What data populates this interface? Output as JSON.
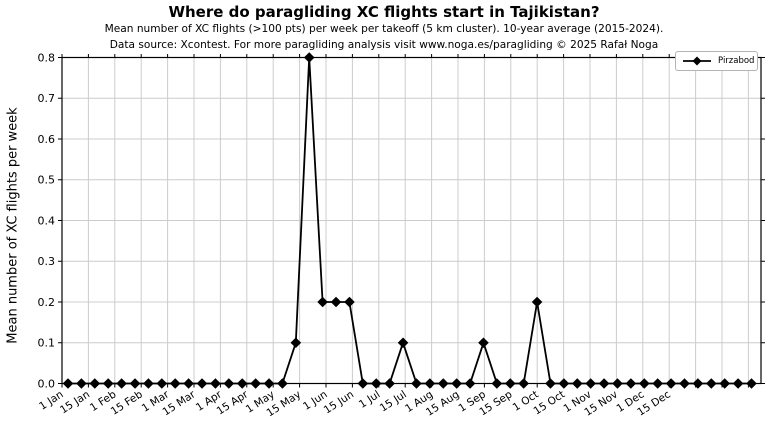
{
  "figure": {
    "title": "Where do paragliding XC flights start in Tajikistan?",
    "subtitle_line1": "Mean number of XC flights (>100 pts) per week per takeoff (5 km cluster). 10-year average (2015-2024).",
    "subtitle_line2": "Data source: Xcontest. For more paragliding analysis visit www.noga.es/paragliding © 2025 Rafał Noga"
  },
  "legend": {
    "series_label": "Pirzabod"
  },
  "chart_data": {
    "type": "line",
    "title": "Where do paragliding XC flights start in Tajikistan?",
    "subtitle1": "Mean number of XC flights (>100 pts) per week per takeoff (5 km cluster). 10-year average (2015-2024).",
    "subtitle2": "Data source: Xcontest. For more paragliding analysis visit www.noga.es/paragliding © 2025 Rafał Noga",
    "xlabel": "",
    "ylabel": "Mean number of XC flights per week",
    "x_unit": "week of year",
    "x_week_numbers": [
      1,
      2,
      3,
      4,
      5,
      6,
      7,
      8,
      9,
      10,
      11,
      12,
      13,
      14,
      15,
      16,
      17,
      18,
      19,
      20,
      21,
      22,
      23,
      24,
      25,
      26,
      27,
      28,
      29,
      30,
      31,
      32,
      33,
      34,
      35,
      36,
      37,
      38,
      39,
      40,
      41,
      42,
      43,
      44,
      45,
      46,
      47,
      48,
      49,
      50,
      51,
      52
    ],
    "series": [
      {
        "name": "Pirzabod",
        "marker": "diamond",
        "color": "#000000",
        "values": [
          0,
          0,
          0,
          0,
          0,
          0,
          0,
          0,
          0,
          0,
          0,
          0,
          0,
          0,
          0,
          0,
          0,
          0.1,
          0.8,
          0.2,
          0.2,
          0.2,
          0,
          0,
          0,
          0.1,
          0,
          0,
          0,
          0,
          0,
          0.1,
          0,
          0,
          0,
          0.2,
          0,
          0,
          0,
          0,
          0,
          0,
          0,
          0,
          0,
          0,
          0,
          0,
          0,
          0,
          0,
          0
        ]
      }
    ],
    "x_tick_labels": [
      "1 Jan",
      "15 Jan",
      "1 Feb",
      "15 Feb",
      "1 Mar",
      "15 Mar",
      "1 Apr",
      "15 Apr",
      "1 May",
      "15 May",
      "1 Jun",
      "15 Jun",
      "1 Jul",
      "15 Jul",
      "1 Aug",
      "15 Aug",
      "1 Sep",
      "15 Sep",
      "1 Oct",
      "15 Oct",
      "1 Nov",
      "15 Nov",
      "1 Dec",
      "15 Dec"
    ],
    "n_x_ticks_total": 27,
    "ylim": [
      0.0,
      0.8
    ],
    "y_ticks": [
      0.0,
      0.1,
      0.2,
      0.3,
      0.4,
      0.5,
      0.6,
      0.7,
      0.8
    ],
    "grid": true,
    "grid_color": "#cccccc",
    "background": "#ffffff",
    "legend_position": "upper right"
  }
}
